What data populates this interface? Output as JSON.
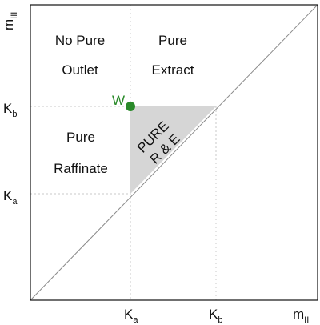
{
  "diagram": {
    "axis": {
      "y_label": "m",
      "y_label_sub": "III",
      "x_label": "m",
      "x_label_sub": "II"
    },
    "ticks": {
      "ka": {
        "base": "K",
        "sub": "a"
      },
      "kb": {
        "base": "K",
        "sub": "b"
      }
    },
    "regions": {
      "no_pure_outlet": [
        "No Pure",
        "Outlet"
      ],
      "pure_extract": [
        "Pure",
        "Extract"
      ],
      "pure_raffinate": [
        "Pure",
        "Raffinate"
      ],
      "pure_re": [
        "PURE",
        "R & E"
      ]
    },
    "point": {
      "label": "W"
    },
    "colors": {
      "accent": "#2a8a2a",
      "triangle_fill": "#d6d6d6",
      "guide": "#c8c8c8",
      "frame": "#111111",
      "diagonal": "#8a8a8a"
    }
  }
}
